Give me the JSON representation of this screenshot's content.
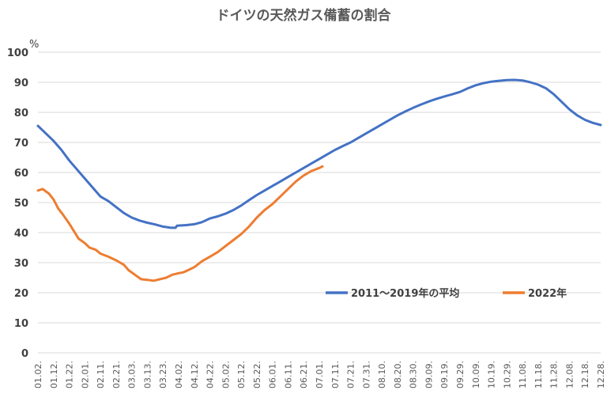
{
  "chart_data": {
    "type": "line",
    "title": "ドイツの天然ガス備蓄の割合",
    "ylabel": "%",
    "xlabel": "",
    "ylim": [
      0,
      100
    ],
    "yticks": [
      0,
      10,
      20,
      30,
      40,
      50,
      60,
      70,
      80,
      90,
      100
    ],
    "grid": true,
    "legend_position": "right-middle",
    "x_tick_labels": [
      "01.02.",
      "01.12.",
      "01.22.",
      "02.01.",
      "02.11.",
      "02.21.",
      "03.03.",
      "03.13.",
      "03.23.",
      "04.02.",
      "04.12.",
      "04.22.",
      "05.02.",
      "05.12.",
      "05.22.",
      "06.01.",
      "06.11.",
      "06.21.",
      "07.01.",
      "07.11.",
      "07.21.",
      "07.31.",
      "08.10.",
      "08.20.",
      "08.30.",
      "09.09.",
      "09.19.",
      "09.29.",
      "10.09.",
      "10.19.",
      "10.29.",
      "11.08.",
      "11.18.",
      "11.28.",
      "12.08.",
      "12.18.",
      "12.28."
    ],
    "series": [
      {
        "name": "2011～2019年の平均",
        "color": "#4472c4",
        "points": [
          [
            "01.02.",
            75.5
          ],
          [
            "01.07.",
            73.0
          ],
          [
            "01.12.",
            70.5
          ],
          [
            "01.17.",
            67.5
          ],
          [
            "01.22.",
            64.0
          ],
          [
            "01.27.",
            61.0
          ],
          [
            "02.01.",
            58.0
          ],
          [
            "02.06.",
            55.0
          ],
          [
            "02.11.",
            52.0
          ],
          [
            "02.16.",
            50.5
          ],
          [
            "02.21.",
            48.5
          ],
          [
            "02.26.",
            46.5
          ],
          [
            "03.03.",
            45.0
          ],
          [
            "03.08.",
            44.0
          ],
          [
            "03.13.",
            43.3
          ],
          [
            "03.18.",
            42.7
          ],
          [
            "03.23.",
            42.0
          ],
          [
            "03.28.",
            41.6
          ],
          [
            "03.31.",
            41.6
          ],
          [
            "04.01.",
            42.3
          ],
          [
            "04.07.",
            42.5
          ],
          [
            "04.12.",
            42.8
          ],
          [
            "04.17.",
            43.5
          ],
          [
            "04.22.",
            44.7
          ],
          [
            "04.27.",
            45.4
          ],
          [
            "05.02.",
            46.3
          ],
          [
            "05.07.",
            47.5
          ],
          [
            "05.12.",
            49.0
          ],
          [
            "05.17.",
            50.8
          ],
          [
            "05.22.",
            52.5
          ],
          [
            "05.27.",
            54.0
          ],
          [
            "06.01.",
            55.5
          ],
          [
            "06.06.",
            57.0
          ],
          [
            "06.11.",
            58.5
          ],
          [
            "06.16.",
            60.0
          ],
          [
            "06.21.",
            61.5
          ],
          [
            "06.26.",
            63.0
          ],
          [
            "07.01.",
            64.5
          ],
          [
            "07.06.",
            66.0
          ],
          [
            "07.11.",
            67.5
          ],
          [
            "07.16.",
            68.8
          ],
          [
            "07.21.",
            70.0
          ],
          [
            "07.26.",
            71.5
          ],
          [
            "07.31.",
            73.0
          ],
          [
            "08.05.",
            74.5
          ],
          [
            "08.10.",
            76.0
          ],
          [
            "08.15.",
            77.5
          ],
          [
            "08.20.",
            79.0
          ],
          [
            "08.25.",
            80.3
          ],
          [
            "08.30.",
            81.5
          ],
          [
            "09.04.",
            82.6
          ],
          [
            "09.09.",
            83.6
          ],
          [
            "09.14.",
            84.5
          ],
          [
            "09.19.",
            85.3
          ],
          [
            "09.24.",
            86.0
          ],
          [
            "09.29.",
            86.8
          ],
          [
            "10.04.",
            88.0
          ],
          [
            "10.09.",
            89.0
          ],
          [
            "10.14.",
            89.7
          ],
          [
            "10.19.",
            90.2
          ],
          [
            "10.24.",
            90.5
          ],
          [
            "10.29.",
            90.7
          ],
          [
            "11.03.",
            90.8
          ],
          [
            "11.08.",
            90.6
          ],
          [
            "11.13.",
            90.0
          ],
          [
            "11.18.",
            89.2
          ],
          [
            "11.23.",
            88.0
          ],
          [
            "11.28.",
            86.0
          ],
          [
            "12.03.",
            83.5
          ],
          [
            "12.08.",
            81.0
          ],
          [
            "12.13.",
            79.0
          ],
          [
            "12.18.",
            77.5
          ],
          [
            "12.23.",
            76.5
          ],
          [
            "12.28.",
            75.8
          ]
        ]
      },
      {
        "name": "2022年",
        "color": "#ed7d31",
        "points": [
          [
            "01.02.",
            54.0
          ],
          [
            "01.05.",
            54.5
          ],
          [
            "01.09.",
            53.0
          ],
          [
            "01.12.",
            51.0
          ],
          [
            "01.15.",
            48.0
          ],
          [
            "01.18.",
            46.0
          ],
          [
            "01.22.",
            43.0
          ],
          [
            "01.25.",
            40.5
          ],
          [
            "01.28.",
            38.0
          ],
          [
            "02.01.",
            36.5
          ],
          [
            "02.04.",
            35.0
          ],
          [
            "02.08.",
            34.3
          ],
          [
            "02.11.",
            33.0
          ],
          [
            "02.16.",
            32.0
          ],
          [
            "02.21.",
            30.8
          ],
          [
            "02.26.",
            29.3
          ],
          [
            "03.01.",
            27.5
          ],
          [
            "03.05.",
            26.0
          ],
          [
            "03.09.",
            24.5
          ],
          [
            "03.13.",
            24.3
          ],
          [
            "03.17.",
            24.0
          ],
          [
            "03.21.",
            24.5
          ],
          [
            "03.25.",
            25.0
          ],
          [
            "03.29.",
            26.0
          ],
          [
            "04.02.",
            26.5
          ],
          [
            "04.05.",
            26.8
          ],
          [
            "04.08.",
            27.5
          ],
          [
            "04.12.",
            28.5
          ],
          [
            "04.17.",
            30.5
          ],
          [
            "04.22.",
            32.0
          ],
          [
            "04.27.",
            33.5
          ],
          [
            "05.02.",
            35.5
          ],
          [
            "05.07.",
            37.5
          ],
          [
            "05.12.",
            39.5
          ],
          [
            "05.17.",
            42.0
          ],
          [
            "05.22.",
            45.0
          ],
          [
            "05.27.",
            47.5
          ],
          [
            "06.01.",
            49.5
          ],
          [
            "06.06.",
            52.0
          ],
          [
            "06.11.",
            54.5
          ],
          [
            "06.16.",
            57.0
          ],
          [
            "06.21.",
            59.0
          ],
          [
            "06.26.",
            60.5
          ],
          [
            "07.01.",
            61.5
          ],
          [
            "07.03.",
            62.0
          ]
        ]
      }
    ]
  }
}
